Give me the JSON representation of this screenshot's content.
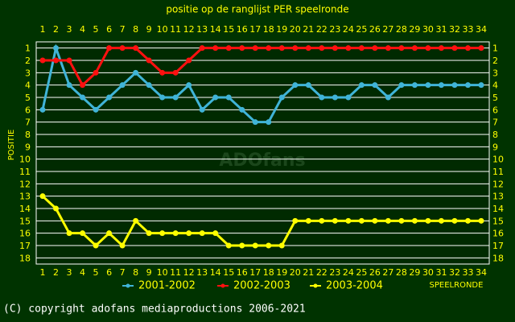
{
  "chart_data": {
    "type": "line",
    "title": "positie op de ranglijst PER speelronde",
    "y_label": "POSITIE",
    "x_label": "SPEELRONDE",
    "watermark": "ADOfans",
    "footer": "(C) copyright adofans mediaproductions 2006-2021",
    "categories": [
      1,
      2,
      3,
      4,
      5,
      6,
      7,
      8,
      9,
      10,
      11,
      12,
      13,
      14,
      15,
      16,
      17,
      18,
      19,
      20,
      21,
      22,
      23,
      24,
      25,
      26,
      27,
      28,
      29,
      30,
      31,
      32,
      33,
      34
    ],
    "ylim": [
      0.5,
      18.5
    ],
    "y_inverted": true,
    "yticks": [
      1,
      2,
      3,
      4,
      5,
      6,
      7,
      8,
      9,
      10,
      11,
      12,
      13,
      14,
      15,
      16,
      17,
      18
    ],
    "grid": true,
    "series": [
      {
        "name": "2001-2002",
        "color": "#40b4d8",
        "values": [
          6,
          1,
          4,
          5,
          6,
          5,
          4,
          3,
          4,
          5,
          5,
          4,
          6,
          5,
          5,
          6,
          7,
          7,
          5,
          4,
          4,
          5,
          5,
          5,
          4,
          4,
          5,
          4,
          4,
          4,
          4,
          4,
          4,
          4
        ]
      },
      {
        "name": "2002-2003",
        "color": "#ff1010",
        "values": [
          2,
          2,
          2,
          4,
          3,
          1,
          1,
          1,
          2,
          3,
          3,
          2,
          1,
          1,
          1,
          1,
          1,
          1,
          1,
          1,
          1,
          1,
          1,
          1,
          1,
          1,
          1,
          1,
          1,
          1,
          1,
          1,
          1,
          1
        ]
      },
      {
        "name": "2003-2004",
        "color": "#ffff00",
        "values": [
          13,
          14,
          16,
          16,
          17,
          16,
          17,
          15,
          16,
          16,
          16,
          16,
          16,
          16,
          17,
          17,
          17,
          17,
          17,
          15,
          15,
          15,
          15,
          15,
          15,
          15,
          15,
          15,
          15,
          15,
          15,
          15,
          15,
          15
        ]
      }
    ]
  }
}
